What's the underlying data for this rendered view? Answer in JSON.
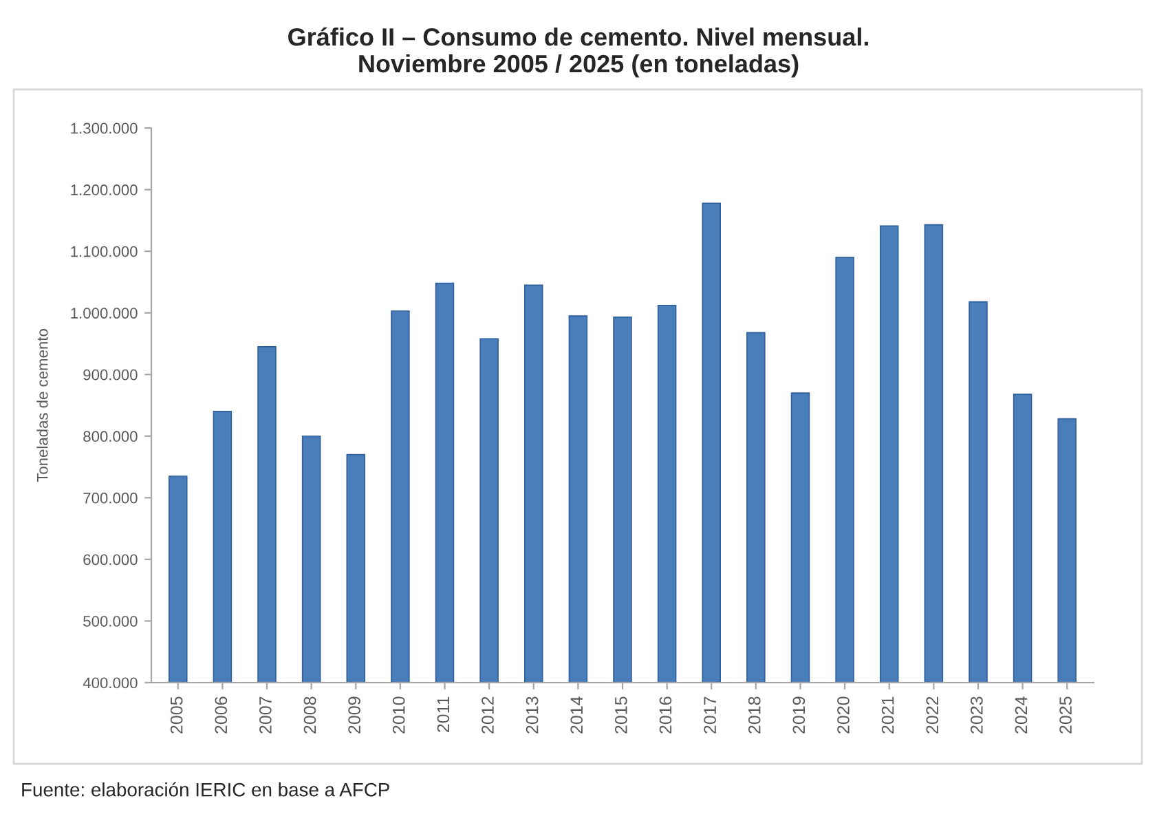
{
  "chart_data": {
    "type": "bar",
    "title": "Gráfico II – Consumo de cemento. Nivel mensual.\nNoviembre 2005 / 2025 (en toneladas)",
    "ylabel": "Toneladas de cemento",
    "annotations": [
      "Fuente: elaboración IERIC en base a AFCP"
    ],
    "categories": [
      "2005",
      "2006",
      "2007",
      "2008",
      "2009",
      "2010",
      "2011",
      "2012",
      "2013",
      "2014",
      "2015",
      "2016",
      "2017",
      "2018",
      "2019",
      "2020",
      "2021",
      "2022",
      "2023",
      "2024",
      "2025"
    ],
    "values": [
      735000,
      840000,
      945000,
      800000,
      770000,
      1003000,
      1048000,
      958000,
      1045000,
      995000,
      993000,
      1012000,
      1178000,
      968000,
      870000,
      1090000,
      1141000,
      1143000,
      1018000,
      868000,
      828000
    ],
    "color": "#4a7ebb",
    "ylim": [
      400000,
      1300000
    ],
    "yticks": [
      {
        "value": 400000,
        "label": "400.000"
      },
      {
        "value": 500000,
        "label": "500.000"
      },
      {
        "value": 600000,
        "label": "600.000"
      },
      {
        "value": 700000,
        "label": "700.000"
      },
      {
        "value": 800000,
        "label": "800.000"
      },
      {
        "value": 900000,
        "label": "900.000"
      },
      {
        "value": 1000000,
        "label": "1.000.000"
      },
      {
        "value": 1100000,
        "label": "1.100.000"
      },
      {
        "value": 1200000,
        "label": "1.200.000"
      },
      {
        "value": 1300000,
        "label": "1.300.000"
      }
    ],
    "grid": false,
    "legend": false
  }
}
